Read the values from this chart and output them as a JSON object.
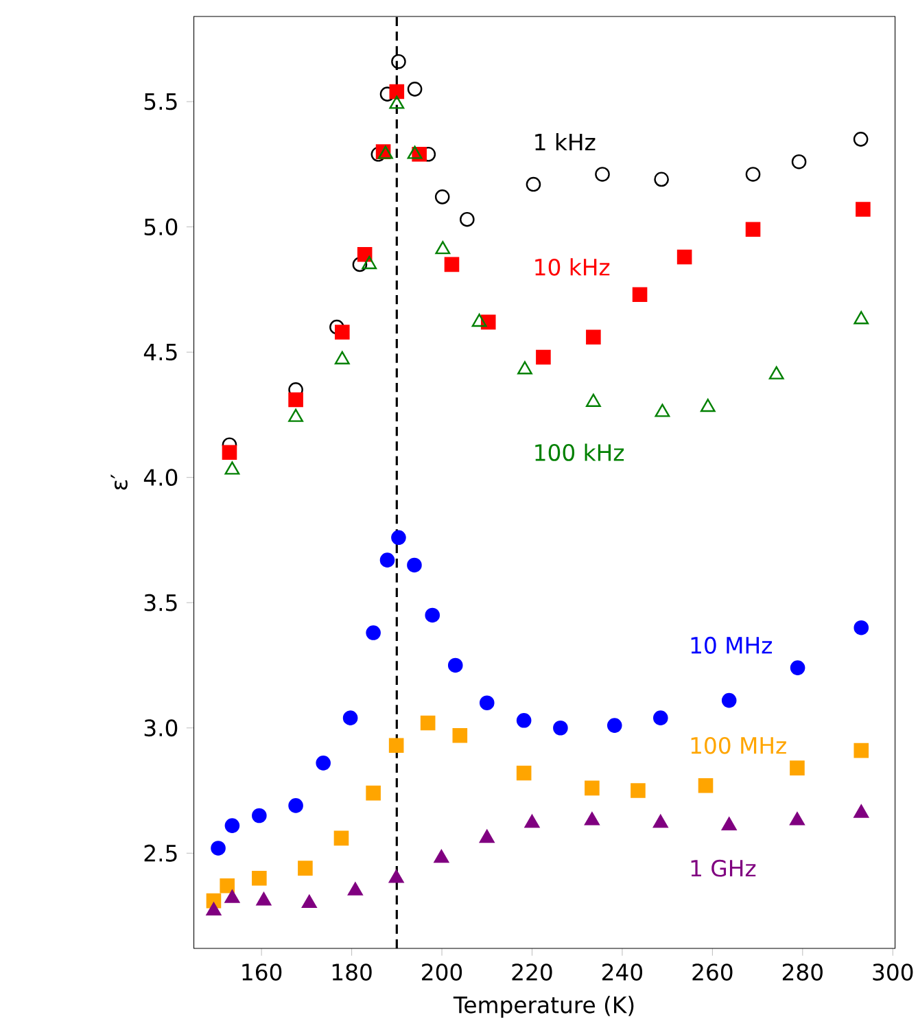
{
  "chart_data": {
    "type": "scatter",
    "xlabel": "Temperature (K)",
    "ylabel": "ε′",
    "xlim": [
      145,
      300.5
    ],
    "ylim": [
      2.12,
      5.84
    ],
    "xticks": [
      160,
      180,
      200,
      220,
      240,
      260,
      280,
      300
    ],
    "yticks": [
      2.5,
      {
        "value": 3,
        "label": "3.0"
      },
      3.5,
      {
        "value": 4,
        "label": "4.0"
      },
      4.5,
      {
        "value": 5,
        "label": "5.0"
      },
      5.5
    ],
    "ref_lines": [
      {
        "axis": "x",
        "value": 190,
        "color": "#000000",
        "line_style": "dashed"
      }
    ],
    "series": [
      {
        "name": "1 kHz",
        "color": "#000000",
        "marker": "circle",
        "x": [
          152.9,
          167.6,
          176.7,
          181.8,
          185.9,
          187.9,
          190.4,
          194.0,
          197.0,
          200.1,
          205.6,
          220.3,
          235.6,
          248.7,
          269.0,
          279.2,
          292.9
        ],
        "values": [
          4.13,
          4.35,
          4.6,
          4.85,
          5.29,
          5.53,
          5.66,
          5.55,
          5.29,
          5.12,
          5.03,
          5.17,
          5.21,
          5.19,
          5.21,
          5.26,
          5.35
        ]
      },
      {
        "name": "10 kHz",
        "color": "#ff0000",
        "marker": "square",
        "x": [
          152.9,
          167.6,
          177.9,
          182.9,
          187.0,
          190.0,
          195.0,
          202.2,
          210.3,
          222.5,
          233.6,
          243.9,
          253.8,
          269.0,
          293.4
        ],
        "values": [
          4.1,
          4.31,
          4.58,
          4.89,
          5.3,
          5.54,
          5.29,
          4.85,
          4.62,
          4.48,
          4.56,
          4.73,
          4.88,
          4.99,
          5.07
        ]
      },
      {
        "name": "100 kHz",
        "color": "#008000",
        "marker": "triangle",
        "x": [
          153.5,
          167.6,
          177.9,
          183.9,
          187.5,
          190.0,
          194.0,
          200.2,
          208.3,
          218.4,
          233.6,
          248.9,
          259.0,
          274.2,
          293.0
        ],
        "values": [
          4.03,
          4.24,
          4.47,
          4.85,
          5.29,
          5.49,
          5.29,
          4.91,
          4.62,
          4.43,
          4.3,
          4.26,
          4.28,
          4.41,
          4.63
        ]
      },
      {
        "name": "10 MHz",
        "color": "#0000ff",
        "marker": "circle",
        "x": [
          150.4,
          153.5,
          159.5,
          167.6,
          173.7,
          179.7,
          184.8,
          187.9,
          190.4,
          193.9,
          197.9,
          203.0,
          210.0,
          218.2,
          226.3,
          238.3,
          248.5,
          263.7,
          278.9,
          293.0
        ],
        "values": [
          2.52,
          2.61,
          2.65,
          2.69,
          2.86,
          3.04,
          3.38,
          3.67,
          3.76,
          3.65,
          3.45,
          3.25,
          3.1,
          3.03,
          3.0,
          3.01,
          3.04,
          3.11,
          3.24,
          3.4
        ]
      },
      {
        "name": "100 MHz",
        "color": "#ffa500",
        "marker": "square",
        "x": [
          149.4,
          152.4,
          159.5,
          169.7,
          177.7,
          184.8,
          189.9,
          196.9,
          204.0,
          218.2,
          233.3,
          243.5,
          258.5,
          278.8,
          293.0
        ],
        "values": [
          2.31,
          2.37,
          2.4,
          2.44,
          2.56,
          2.74,
          2.93,
          3.02,
          2.97,
          2.82,
          2.76,
          2.75,
          2.77,
          2.84,
          2.91
        ]
      },
      {
        "name": "1 GHz",
        "color": "#800080",
        "marker": "triangle",
        "x": [
          149.4,
          153.5,
          160.5,
          170.6,
          180.8,
          189.9,
          199.9,
          210.0,
          220.0,
          233.3,
          248.5,
          263.7,
          278.8,
          293.0
        ],
        "values": [
          2.27,
          2.32,
          2.31,
          2.3,
          2.35,
          2.4,
          2.48,
          2.56,
          2.62,
          2.63,
          2.62,
          2.61,
          2.63,
          2.66
        ]
      }
    ]
  }
}
